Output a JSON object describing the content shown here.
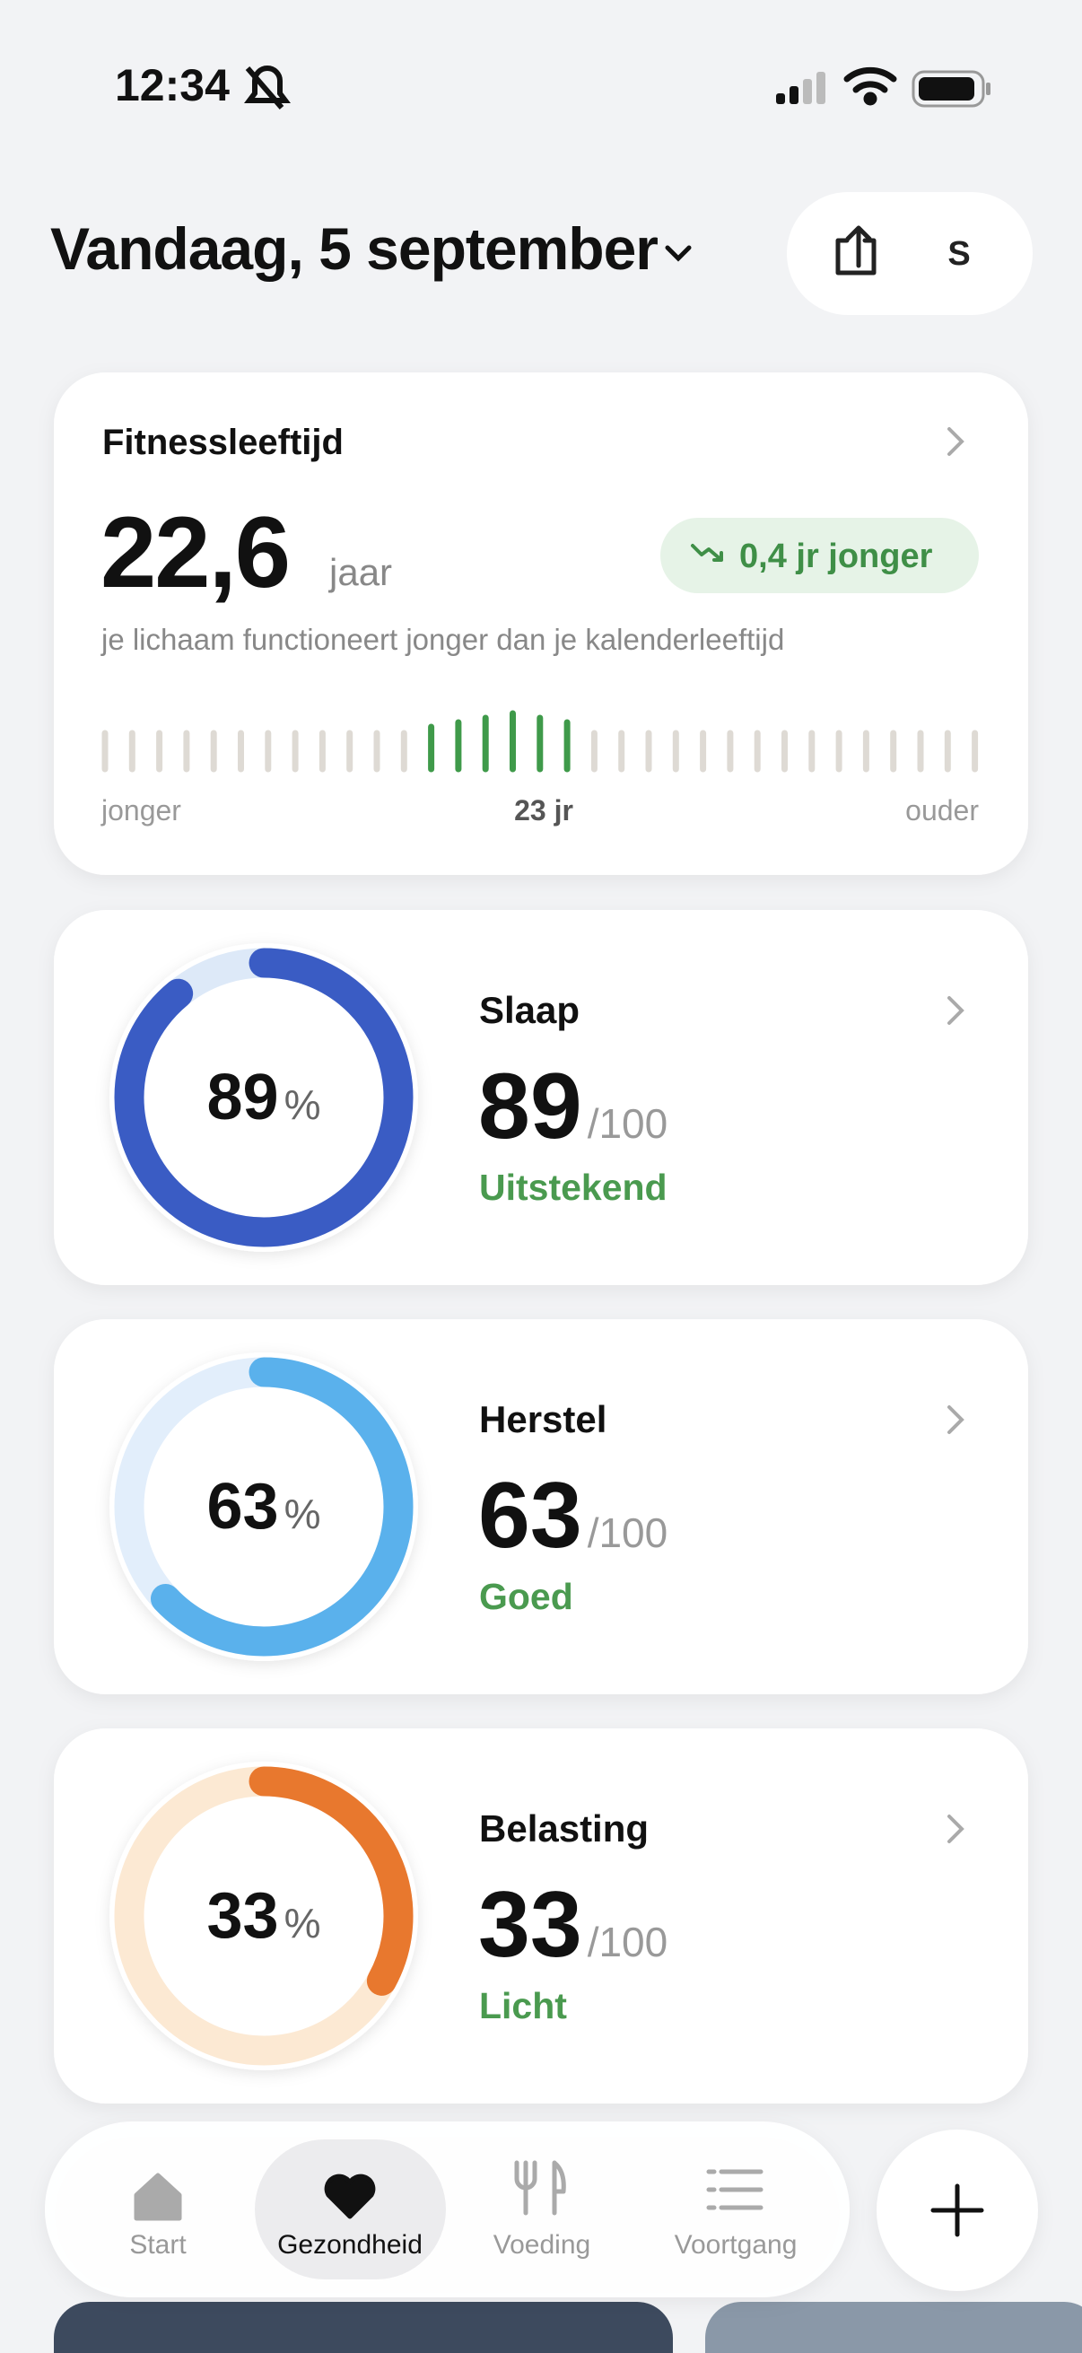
{
  "status_bar": {
    "time": "12:34"
  },
  "header": {
    "title": "Vandaag, 5 september",
    "avatar": "S"
  },
  "fitness": {
    "title": "Fitnessleeftijd",
    "value": "22,6",
    "unit": "jaar",
    "badge": "0,4 jr jonger",
    "description": "je lichaam functioneert jonger dan je kalenderleeftijd",
    "scale_left": "jonger",
    "scale_center": "23 jr",
    "scale_right": "ouder"
  },
  "scores": [
    {
      "name": "Slaap",
      "value": 89,
      "percent": "%",
      "max": "/100",
      "rating": "Uitstekend",
      "color": "#3a5cc4",
      "track": "#dde9f8"
    },
    {
      "name": "Herstel",
      "value": 63,
      "percent": "%",
      "max": "/100",
      "rating": "Goed",
      "color": "#5ab1ec",
      "track": "#e2eefb"
    },
    {
      "name": "Belasting",
      "value": 33,
      "percent": "%",
      "max": "/100",
      "rating": "Licht",
      "color": "#e8782e",
      "track": "#fce9d3"
    }
  ],
  "nav": {
    "items": [
      "Start",
      "Gezondheid",
      "Voeding",
      "Voortgang"
    ],
    "active": 1
  }
}
